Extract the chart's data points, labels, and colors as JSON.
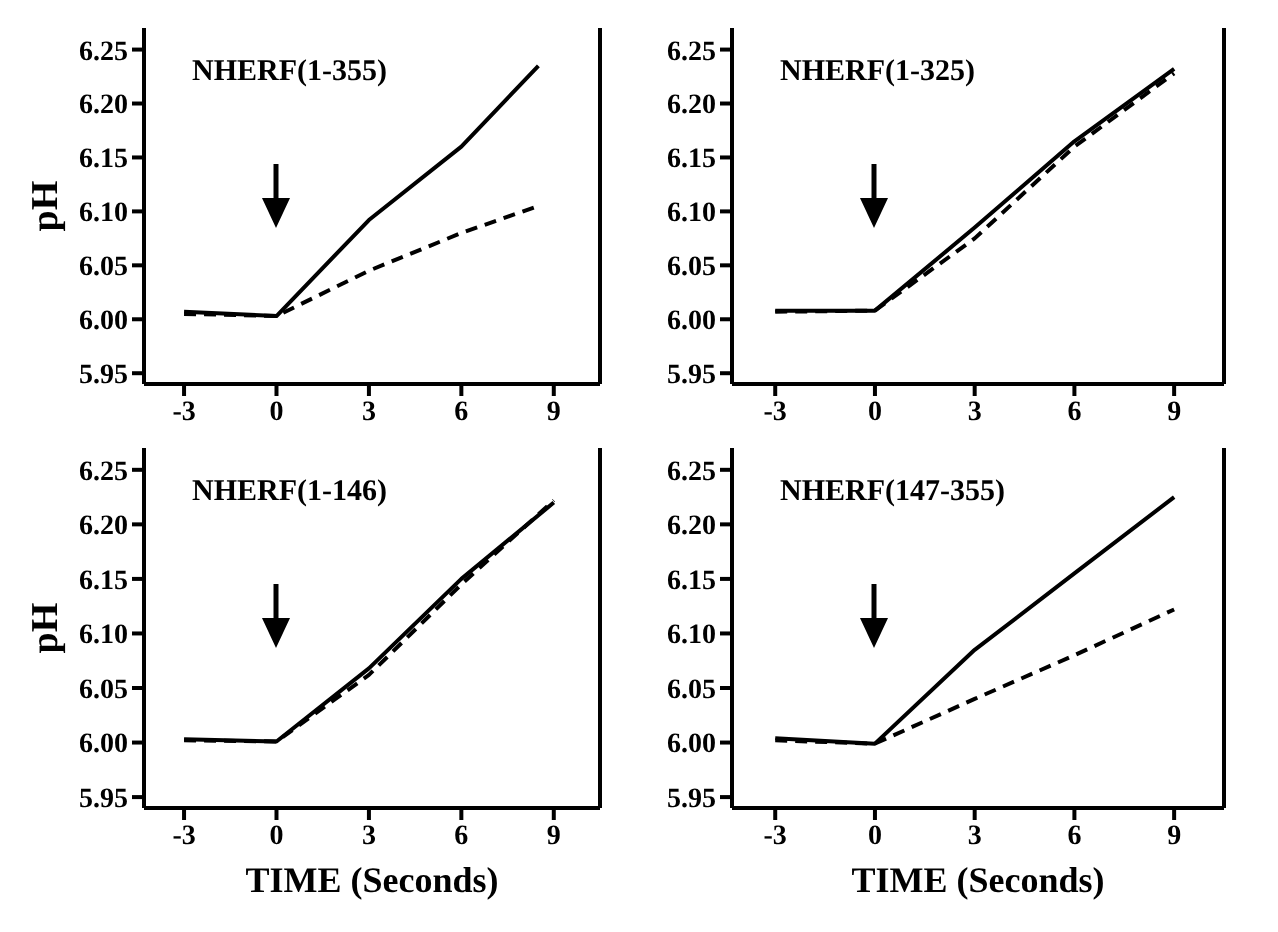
{
  "chart_data": [
    {
      "type": "line",
      "title": "NHERF(1-355)",
      "ylabel": "pH",
      "xlim": [
        -4.3,
        10.5
      ],
      "ylim": [
        5.94,
        6.27
      ],
      "xticks": [
        -3,
        0,
        3,
        6,
        9
      ],
      "yticks": [
        {
          "value": 5.95,
          "label": "5.95"
        },
        {
          "value": 6.0,
          "label": "6.00"
        },
        {
          "value": 6.05,
          "label": "6.05"
        },
        {
          "value": 6.1,
          "label": "6.10"
        },
        {
          "value": 6.15,
          "label": "6.15"
        },
        {
          "value": 6.2,
          "label": "6.20"
        },
        {
          "value": 6.25,
          "label": "6.25"
        }
      ],
      "grid": false,
      "legend": false,
      "series": [
        {
          "color": "#000000",
          "line_style": "solid",
          "x": [
            -3,
            0,
            3,
            6,
            8.5
          ],
          "values": [
            6.007,
            6.003,
            6.092,
            6.16,
            6.235
          ]
        },
        {
          "color": "#000000",
          "line_style": "dashed",
          "x": [
            -3,
            0,
            3,
            6,
            8.5
          ],
          "values": [
            6.005,
            6.003,
            6.045,
            6.08,
            6.105
          ]
        }
      ]
    },
    {
      "type": "line",
      "title": "NHERF(1-325)",
      "xlim": [
        -4.3,
        10.5
      ],
      "ylim": [
        5.94,
        6.27
      ],
      "xticks": [
        -3,
        0,
        3,
        6,
        9
      ],
      "yticks": [
        {
          "value": 5.95,
          "label": "5.95"
        },
        {
          "value": 6.0,
          "label": "6.00"
        },
        {
          "value": 6.05,
          "label": "6.05"
        },
        {
          "value": 6.1,
          "label": "6.10"
        },
        {
          "value": 6.15,
          "label": "6.15"
        },
        {
          "value": 6.2,
          "label": "6.20"
        },
        {
          "value": 6.25,
          "label": "6.25"
        }
      ],
      "grid": false,
      "legend": false,
      "series": [
        {
          "color": "#000000",
          "line_style": "solid",
          "x": [
            -3,
            0,
            3,
            6,
            9
          ],
          "values": [
            6.008,
            6.008,
            6.085,
            6.165,
            6.232
          ]
        },
        {
          "color": "#000000",
          "line_style": "dashed",
          "x": [
            -3,
            0,
            3,
            6,
            9
          ],
          "values": [
            6.007,
            6.008,
            6.075,
            6.16,
            6.228
          ]
        }
      ]
    },
    {
      "type": "line",
      "title": "NHERF(1-146)",
      "xlabel": "TIME (Seconds)",
      "ylabel": "pH",
      "xlim": [
        -4.3,
        10.5
      ],
      "ylim": [
        5.94,
        6.27
      ],
      "xticks": [
        -3,
        0,
        3,
        6,
        9
      ],
      "yticks": [
        {
          "value": 5.95,
          "label": "5.95"
        },
        {
          "value": 6.0,
          "label": "6.00"
        },
        {
          "value": 6.05,
          "label": "6.05"
        },
        {
          "value": 6.1,
          "label": "6.10"
        },
        {
          "value": 6.15,
          "label": "6.15"
        },
        {
          "value": 6.2,
          "label": "6.20"
        },
        {
          "value": 6.25,
          "label": "6.25"
        }
      ],
      "grid": false,
      "legend": false,
      "series": [
        {
          "color": "#000000",
          "line_style": "solid",
          "x": [
            -3,
            0,
            3,
            6,
            9
          ],
          "values": [
            6.003,
            6.001,
            6.068,
            6.15,
            6.22
          ]
        },
        {
          "color": "#000000",
          "line_style": "dashed",
          "x": [
            -3,
            0,
            3,
            6,
            9
          ],
          "values": [
            6.002,
            6.001,
            6.062,
            6.145,
            6.222
          ]
        }
      ]
    },
    {
      "type": "line",
      "title": "NHERF(147-355)",
      "xlabel": "TIME (Seconds)",
      "xlim": [
        -4.3,
        10.5
      ],
      "ylim": [
        5.94,
        6.27
      ],
      "xticks": [
        -3,
        0,
        3,
        6,
        9
      ],
      "yticks": [
        {
          "value": 5.95,
          "label": "5.95"
        },
        {
          "value": 6.0,
          "label": "6.00"
        },
        {
          "value": 6.05,
          "label": "6.05"
        },
        {
          "value": 6.1,
          "label": "6.10"
        },
        {
          "value": 6.15,
          "label": "6.15"
        },
        {
          "value": 6.2,
          "label": "6.20"
        },
        {
          "value": 6.25,
          "label": "6.25"
        }
      ],
      "grid": false,
      "legend": false,
      "series": [
        {
          "color": "#000000",
          "line_style": "solid",
          "x": [
            -3,
            0,
            3,
            6,
            9
          ],
          "values": [
            6.004,
            5.999,
            6.085,
            6.155,
            6.225
          ]
        },
        {
          "color": "#000000",
          "line_style": "dashed",
          "x": [
            -3,
            0,
            3,
            6,
            9
          ],
          "values": [
            6.002,
            5.999,
            6.04,
            6.08,
            6.122
          ]
        }
      ]
    }
  ]
}
